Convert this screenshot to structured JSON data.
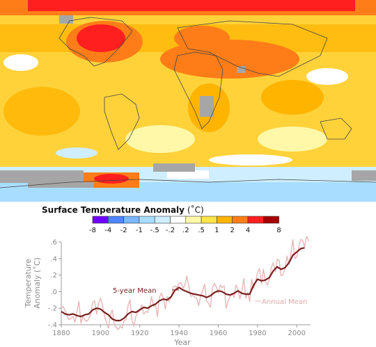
{
  "map": {
    "colors": {
      "bins": [
        "#6f00ff",
        "#4f86ff",
        "#7cb6ff",
        "#a8ddff",
        "#cfeeff",
        "#ffffff",
        "#fff8a8",
        "#ffe445",
        "#ffb400",
        "#ff7d18",
        "#ff1f1f",
        "#a40000"
      ],
      "no_data": "#a6a6a6",
      "coastline": "#444444"
    }
  },
  "legend": {
    "title": "Surface Temperature Anomaly",
    "unit": "(˚C)",
    "ticks": [
      "-8",
      "-4",
      "-2",
      "-1",
      "-.5",
      "-.2",
      ".2",
      ".5",
      "1",
      "2",
      "4",
      "8"
    ],
    "colors": [
      "#6f00ff",
      "#4f86ff",
      "#7cb6ff",
      "#a8ddff",
      "#cfeeff",
      "#ffffff",
      "#fff8a8",
      "#ffe445",
      "#ffb400",
      "#ff7d18",
      "#ff1f1f",
      "#a40000"
    ]
  },
  "chart_data": {
    "type": "line",
    "ylabel": "Temperature Anomaly (˚C)",
    "xlabel": "Year",
    "xlim": [
      1880,
      2007
    ],
    "ylim": [
      -0.4,
      0.6
    ],
    "x_ticks": [
      "1880",
      "1900",
      "1920",
      "1940",
      "1960",
      "1980",
      "2000"
    ],
    "y_ticks": [
      "-.4",
      "-.2",
      ".0",
      ".2",
      ".4",
      ".6"
    ],
    "colors": {
      "five_year": "#7a2020",
      "annual": "#e8b6b6"
    },
    "series": [
      {
        "name": "5-year Mean",
        "x": [
          1880,
          1882,
          1884,
          1886,
          1888,
          1890,
          1892,
          1894,
          1896,
          1898,
          1900,
          1902,
          1904,
          1906,
          1908,
          1910,
          1912,
          1914,
          1916,
          1918,
          1920,
          1922,
          1924,
          1926,
          1928,
          1930,
          1932,
          1934,
          1936,
          1938,
          1940,
          1942,
          1944,
          1946,
          1948,
          1950,
          1952,
          1954,
          1956,
          1958,
          1960,
          1962,
          1964,
          1966,
          1968,
          1970,
          1972,
          1974,
          1976,
          1978,
          1980,
          1982,
          1984,
          1986,
          1988,
          1990,
          1992,
          1994,
          1996,
          1998,
          2000,
          2002,
          2004
        ],
        "values": [
          -0.24,
          -0.27,
          -0.28,
          -0.27,
          -0.29,
          -0.3,
          -0.28,
          -0.27,
          -0.22,
          -0.2,
          -0.21,
          -0.25,
          -0.28,
          -0.33,
          -0.35,
          -0.35,
          -0.32,
          -0.27,
          -0.24,
          -0.25,
          -0.22,
          -0.19,
          -0.2,
          -0.17,
          -0.15,
          -0.11,
          -0.09,
          -0.1,
          -0.06,
          0.02,
          0.05,
          0.02,
          0.0,
          -0.02,
          -0.03,
          -0.04,
          -0.05,
          -0.07,
          -0.05,
          -0.01,
          0.01,
          0.0,
          -0.03,
          -0.04,
          -0.02,
          0.01,
          -0.02,
          -0.03,
          -0.03,
          0.08,
          0.15,
          0.13,
          0.14,
          0.17,
          0.25,
          0.3,
          0.27,
          0.29,
          0.35,
          0.44,
          0.48,
          0.52,
          0.53
        ]
      },
      {
        "name": "Annual Mean",
        "x": [
          1880,
          1881,
          1882,
          1883,
          1884,
          1885,
          1886,
          1887,
          1888,
          1889,
          1890,
          1891,
          1892,
          1893,
          1894,
          1895,
          1896,
          1897,
          1898,
          1899,
          1900,
          1901,
          1902,
          1903,
          1904,
          1905,
          1906,
          1907,
          1908,
          1909,
          1910,
          1911,
          1912,
          1913,
          1914,
          1915,
          1916,
          1917,
          1918,
          1919,
          1920,
          1921,
          1922,
          1923,
          1924,
          1925,
          1926,
          1927,
          1928,
          1929,
          1930,
          1931,
          1932,
          1933,
          1934,
          1935,
          1936,
          1937,
          1938,
          1939,
          1940,
          1941,
          1942,
          1943,
          1944,
          1945,
          1946,
          1947,
          1948,
          1949,
          1950,
          1951,
          1952,
          1953,
          1954,
          1955,
          1956,
          1957,
          1958,
          1959,
          1960,
          1961,
          1962,
          1963,
          1964,
          1965,
          1966,
          1967,
          1968,
          1969,
          1970,
          1971,
          1972,
          1973,
          1974,
          1975,
          1976,
          1977,
          1978,
          1979,
          1980,
          1981,
          1982,
          1983,
          1984,
          1985,
          1986,
          1987,
          1988,
          1989,
          1990,
          1991,
          1992,
          1993,
          1994,
          1995,
          1996,
          1997,
          1998,
          1999,
          2000,
          2001,
          2002,
          2003,
          2004,
          2005,
          2006
        ],
        "values": [
          -0.2,
          -0.18,
          -0.23,
          -0.3,
          -0.34,
          -0.32,
          -0.3,
          -0.37,
          -0.24,
          -0.12,
          -0.38,
          -0.3,
          -0.34,
          -0.36,
          -0.33,
          -0.27,
          -0.13,
          -0.11,
          -0.27,
          -0.14,
          -0.08,
          -0.16,
          -0.29,
          -0.37,
          -0.44,
          -0.28,
          -0.22,
          -0.4,
          -0.43,
          -0.46,
          -0.42,
          -0.44,
          -0.35,
          -0.34,
          -0.17,
          -0.1,
          -0.34,
          -0.42,
          -0.3,
          -0.25,
          -0.23,
          -0.16,
          -0.27,
          -0.24,
          -0.25,
          -0.19,
          -0.06,
          -0.18,
          -0.15,
          -0.3,
          -0.07,
          -0.02,
          -0.08,
          -0.21,
          -0.06,
          -0.12,
          -0.07,
          0.05,
          0.07,
          0.05,
          0.1,
          0.11,
          0.04,
          0.08,
          0.19,
          0.06,
          -0.06,
          -0.04,
          -0.07,
          -0.08,
          -0.17,
          -0.05,
          0.01,
          0.09,
          -0.11,
          -0.14,
          -0.19,
          0.05,
          0.1,
          0.06,
          -0.02,
          0.08,
          0.05,
          0.07,
          -0.2,
          -0.11,
          -0.06,
          -0.02,
          -0.07,
          0.08,
          0.03,
          -0.09,
          0.01,
          0.16,
          -0.08,
          -0.01,
          -0.12,
          0.15,
          0.04,
          0.12,
          0.23,
          0.28,
          0.09,
          0.27,
          0.12,
          0.08,
          0.15,
          0.29,
          0.35,
          0.24,
          0.39,
          0.38,
          0.19,
          0.21,
          0.28,
          0.43,
          0.33,
          0.46,
          0.63,
          0.4,
          0.42,
          0.54,
          0.63,
          0.62,
          0.54,
          0.68,
          0.61
        ]
      }
    ]
  }
}
